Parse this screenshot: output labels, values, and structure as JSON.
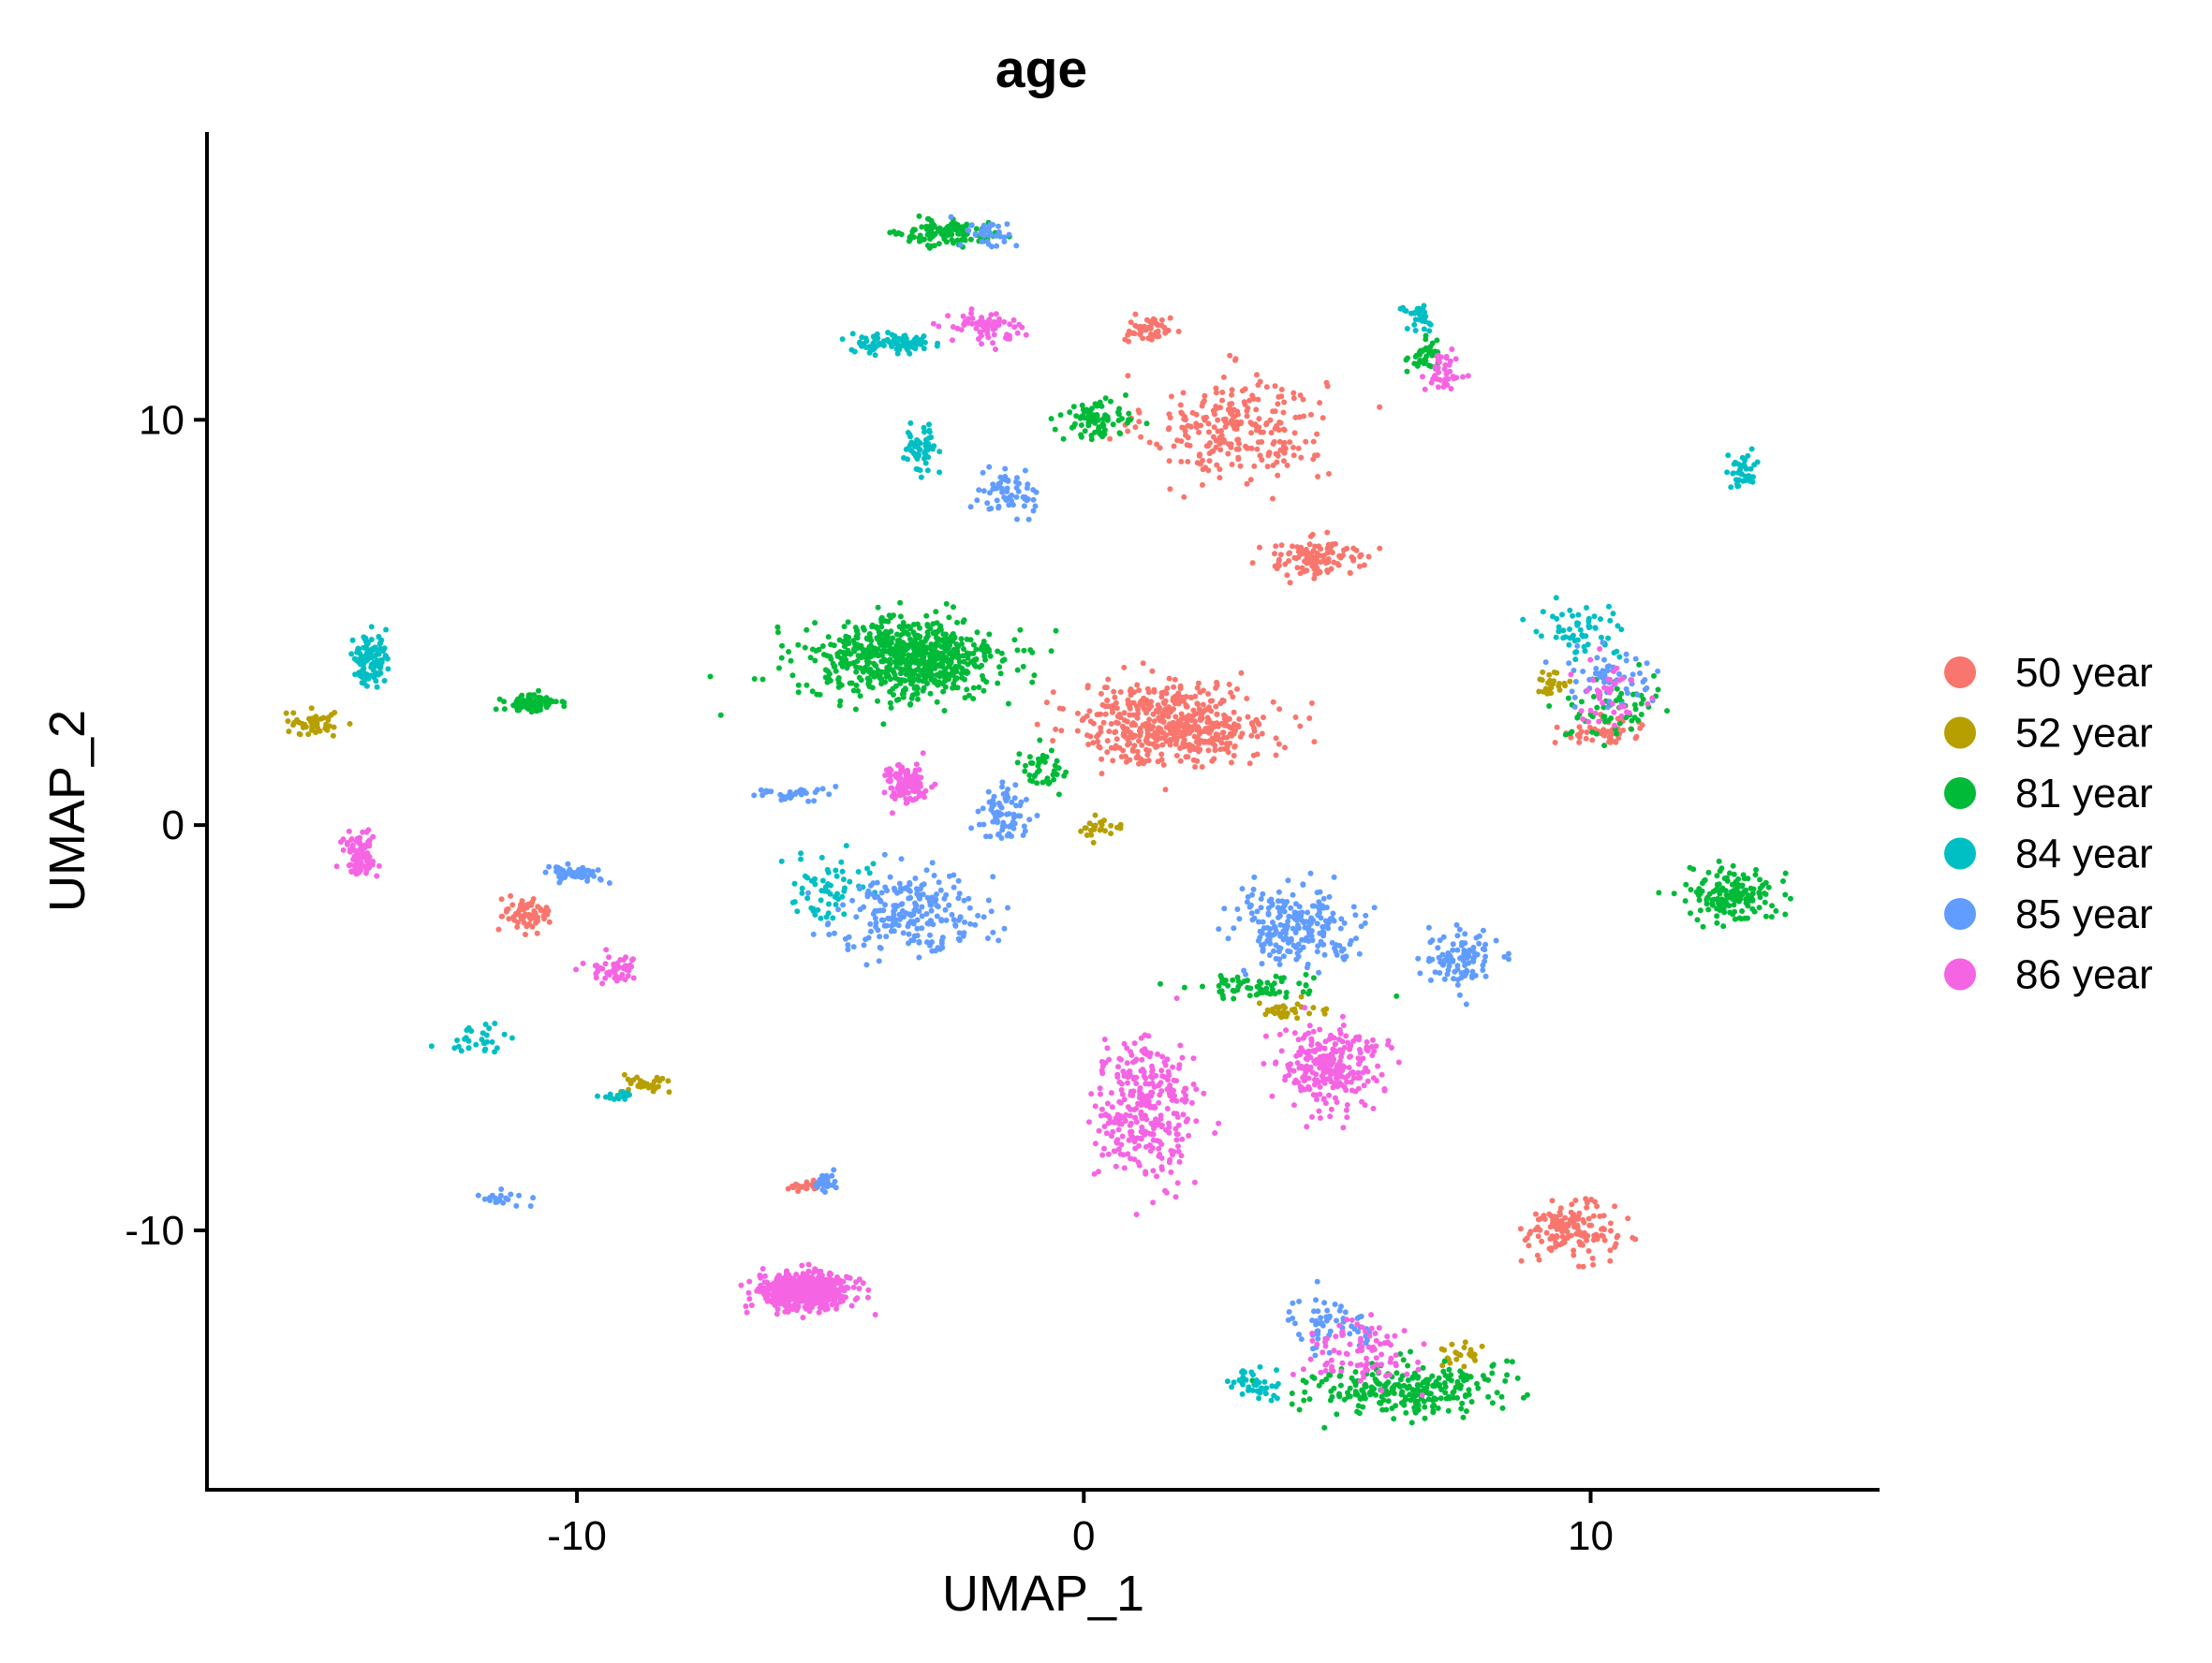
{
  "chart_data": {
    "type": "scatter",
    "title": "age",
    "xlabel": "UMAP_1",
    "ylabel": "UMAP_2",
    "xlim": [
      -17.3,
      15.7
    ],
    "ylim": [
      -16.4,
      17.1
    ],
    "xticks": [
      -10,
      0,
      10
    ],
    "xtick_labels": [
      "-10",
      "0",
      "10"
    ],
    "yticks": [
      -10,
      0,
      10
    ],
    "ytick_labels": [
      "-10",
      "0",
      "10"
    ],
    "grid": false,
    "legend_position": "right",
    "point_shape": "circle",
    "series": [
      {
        "name": "50 year",
        "color": "#F8766D"
      },
      {
        "name": "52 year",
        "color": "#B79F00"
      },
      {
        "name": "81 year",
        "color": "#00BA38"
      },
      {
        "name": "84 year",
        "color": "#00BFC4"
      },
      {
        "name": "85 year",
        "color": "#619CFF"
      },
      {
        "name": "86 year",
        "color": "#F564E3"
      }
    ],
    "clusters": [
      {
        "label": "50 year",
        "center": [
          3.0,
          9.8
        ],
        "spread": [
          1.6,
          1.2
        ],
        "points": 260
      },
      {
        "label": "50 year",
        "center": [
          1.8,
          2.5
        ],
        "spread": [
          1.7,
          0.9
        ],
        "points": 520
      },
      {
        "label": "50 year",
        "center": [
          4.6,
          6.6
        ],
        "spread": [
          1.0,
          0.4
        ],
        "points": 120
      },
      {
        "label": "50 year",
        "center": [
          1.3,
          12.2
        ],
        "spread": [
          0.4,
          0.3
        ],
        "points": 50
      },
      {
        "label": "50 year",
        "center": [
          9.6,
          -10.0
        ],
        "spread": [
          0.8,
          0.6
        ],
        "points": 150
      },
      {
        "label": "50 year",
        "center": [
          -11.0,
          -2.2
        ],
        "spread": [
          0.4,
          0.4
        ],
        "points": 70
      },
      {
        "label": "50 year",
        "center": [
          -5.5,
          -8.9
        ],
        "spread": [
          0.3,
          0.1
        ],
        "points": 25
      },
      {
        "label": "50 year",
        "center": [
          10.3,
          2.3
        ],
        "spread": [
          0.9,
          0.3
        ],
        "points": 50
      },
      {
        "label": "52 year",
        "center": [
          -15.2,
          2.5
        ],
        "spread": [
          0.5,
          0.3
        ],
        "points": 45
      },
      {
        "label": "52 year",
        "center": [
          -8.6,
          -6.4
        ],
        "spread": [
          0.5,
          0.2
        ],
        "points": 30
      },
      {
        "label": "52 year",
        "center": [
          0.3,
          -0.1
        ],
        "spread": [
          0.4,
          0.2
        ],
        "points": 25
      },
      {
        "label": "52 year",
        "center": [
          4.0,
          -4.6
        ],
        "spread": [
          0.8,
          0.2
        ],
        "points": 30
      },
      {
        "label": "52 year",
        "center": [
          7.5,
          -13.1
        ],
        "spread": [
          0.4,
          0.3
        ],
        "points": 25
      },
      {
        "label": "52 year",
        "center": [
          9.2,
          3.5
        ],
        "spread": [
          0.4,
          0.3
        ],
        "points": 25
      },
      {
        "label": "81 year",
        "center": [
          -3.5,
          4.1
        ],
        "spread": [
          1.7,
          0.9
        ],
        "points": 700
      },
      {
        "label": "81 year",
        "center": [
          -10.9,
          3.0
        ],
        "spread": [
          0.5,
          0.2
        ],
        "points": 80
      },
      {
        "label": "81 year",
        "center": [
          -2.6,
          14.6
        ],
        "spread": [
          0.9,
          0.3
        ],
        "points": 120
      },
      {
        "label": "81 year",
        "center": [
          0.2,
          10.0
        ],
        "spread": [
          0.6,
          0.4
        ],
        "points": 80
      },
      {
        "label": "81 year",
        "center": [
          12.8,
          -1.7
        ],
        "spread": [
          0.8,
          0.6
        ],
        "points": 160
      },
      {
        "label": "81 year",
        "center": [
          6.3,
          -13.9
        ],
        "spread": [
          1.7,
          0.6
        ],
        "points": 260
      },
      {
        "label": "81 year",
        "center": [
          3.5,
          -4.0
        ],
        "spread": [
          1.3,
          0.3
        ],
        "points": 60
      },
      {
        "label": "81 year",
        "center": [
          -0.8,
          1.4
        ],
        "spread": [
          0.4,
          0.5
        ],
        "points": 40
      },
      {
        "label": "81 year",
        "center": [
          6.7,
          11.6
        ],
        "spread": [
          0.3,
          0.4
        ],
        "points": 35
      },
      {
        "label": "81 year",
        "center": [
          10.4,
          2.8
        ],
        "spread": [
          0.8,
          0.7
        ],
        "points": 60
      },
      {
        "label": "84 year",
        "center": [
          -14.1,
          4.1
        ],
        "spread": [
          0.3,
          0.6
        ],
        "points": 110
      },
      {
        "label": "84 year",
        "center": [
          -3.8,
          11.9
        ],
        "spread": [
          0.7,
          0.2
        ],
        "points": 90
      },
      {
        "label": "84 year",
        "center": [
          -3.2,
          9.3
        ],
        "spread": [
          0.3,
          0.5
        ],
        "points": 60
      },
      {
        "label": "84 year",
        "center": [
          -11.9,
          -5.3
        ],
        "spread": [
          0.6,
          0.3
        ],
        "points": 30
      },
      {
        "label": "84 year",
        "center": [
          -9.2,
          -6.7
        ],
        "spread": [
          0.3,
          0.1
        ],
        "points": 20
      },
      {
        "label": "84 year",
        "center": [
          13.0,
          8.7
        ],
        "spread": [
          0.3,
          0.4
        ],
        "points": 40
      },
      {
        "label": "84 year",
        "center": [
          9.9,
          4.8
        ],
        "spread": [
          0.8,
          0.6
        ],
        "points": 60
      },
      {
        "label": "84 year",
        "center": [
          6.6,
          12.6
        ],
        "spread": [
          0.3,
          0.3
        ],
        "points": 30
      },
      {
        "label": "84 year",
        "center": [
          3.4,
          -13.8
        ],
        "spread": [
          0.6,
          0.3
        ],
        "points": 40
      },
      {
        "label": "84 year",
        "center": [
          -5.0,
          -1.5
        ],
        "spread": [
          0.7,
          0.8
        ],
        "points": 60
      },
      {
        "label": "85 year",
        "center": [
          -3.4,
          -2.1
        ],
        "spread": [
          1.3,
          0.9
        ],
        "points": 220
      },
      {
        "label": "85 year",
        "center": [
          4.2,
          -2.5
        ],
        "spread": [
          1.2,
          0.8
        ],
        "points": 220
      },
      {
        "label": "85 year",
        "center": [
          -10.0,
          -1.2
        ],
        "spread": [
          0.5,
          0.2
        ],
        "points": 50
      },
      {
        "label": "85 year",
        "center": [
          7.4,
          -3.3
        ],
        "spread": [
          0.7,
          0.6
        ],
        "points": 100
      },
      {
        "label": "85 year",
        "center": [
          -5.1,
          -8.8
        ],
        "spread": [
          0.2,
          0.2
        ],
        "points": 35
      },
      {
        "label": "85 year",
        "center": [
          -1.5,
          8.2
        ],
        "spread": [
          0.6,
          0.5
        ],
        "points": 60
      },
      {
        "label": "85 year",
        "center": [
          -1.6,
          0.2
        ],
        "spread": [
          0.4,
          0.6
        ],
        "points": 70
      },
      {
        "label": "85 year",
        "center": [
          -5.8,
          0.8
        ],
        "spread": [
          0.8,
          0.2
        ],
        "points": 30
      },
      {
        "label": "85 year",
        "center": [
          4.9,
          -12.3
        ],
        "spread": [
          0.8,
          0.6
        ],
        "points": 60
      },
      {
        "label": "85 year",
        "center": [
          10.3,
          3.7
        ],
        "spread": [
          0.8,
          0.6
        ],
        "points": 60
      },
      {
        "label": "85 year",
        "center": [
          -1.8,
          14.6
        ],
        "spread": [
          0.5,
          0.3
        ],
        "points": 40
      },
      {
        "label": "85 year",
        "center": [
          -11.5,
          -9.2
        ],
        "spread": [
          0.5,
          0.2
        ],
        "points": 20
      },
      {
        "label": "86 year",
        "center": [
          -5.5,
          -11.5
        ],
        "spread": [
          0.8,
          0.4
        ],
        "points": 520
      },
      {
        "label": "86 year",
        "center": [
          1.2,
          -7.0
        ],
        "spread": [
          0.9,
          1.6
        ],
        "points": 320
      },
      {
        "label": "86 year",
        "center": [
          4.8,
          -6.0
        ],
        "spread": [
          0.9,
          1.0
        ],
        "points": 260
      },
      {
        "label": "86 year",
        "center": [
          -3.5,
          1.0
        ],
        "spread": [
          0.4,
          0.4
        ],
        "points": 120
      },
      {
        "label": "86 year",
        "center": [
          -14.3,
          -0.8
        ],
        "spread": [
          0.3,
          0.5
        ],
        "points": 80
      },
      {
        "label": "86 year",
        "center": [
          -9.3,
          -3.6
        ],
        "spread": [
          0.5,
          0.3
        ],
        "points": 50
      },
      {
        "label": "86 year",
        "center": [
          -2.0,
          12.3
        ],
        "spread": [
          0.6,
          0.4
        ],
        "points": 70
      },
      {
        "label": "86 year",
        "center": [
          7.1,
          11.2
        ],
        "spread": [
          0.3,
          0.6
        ],
        "points": 40
      },
      {
        "label": "86 year",
        "center": [
          5.5,
          -13.0
        ],
        "spread": [
          1.2,
          0.7
        ],
        "points": 90
      },
      {
        "label": "86 year",
        "center": [
          10.4,
          3.2
        ],
        "spread": [
          0.7,
          0.7
        ],
        "points": 40
      }
    ]
  }
}
